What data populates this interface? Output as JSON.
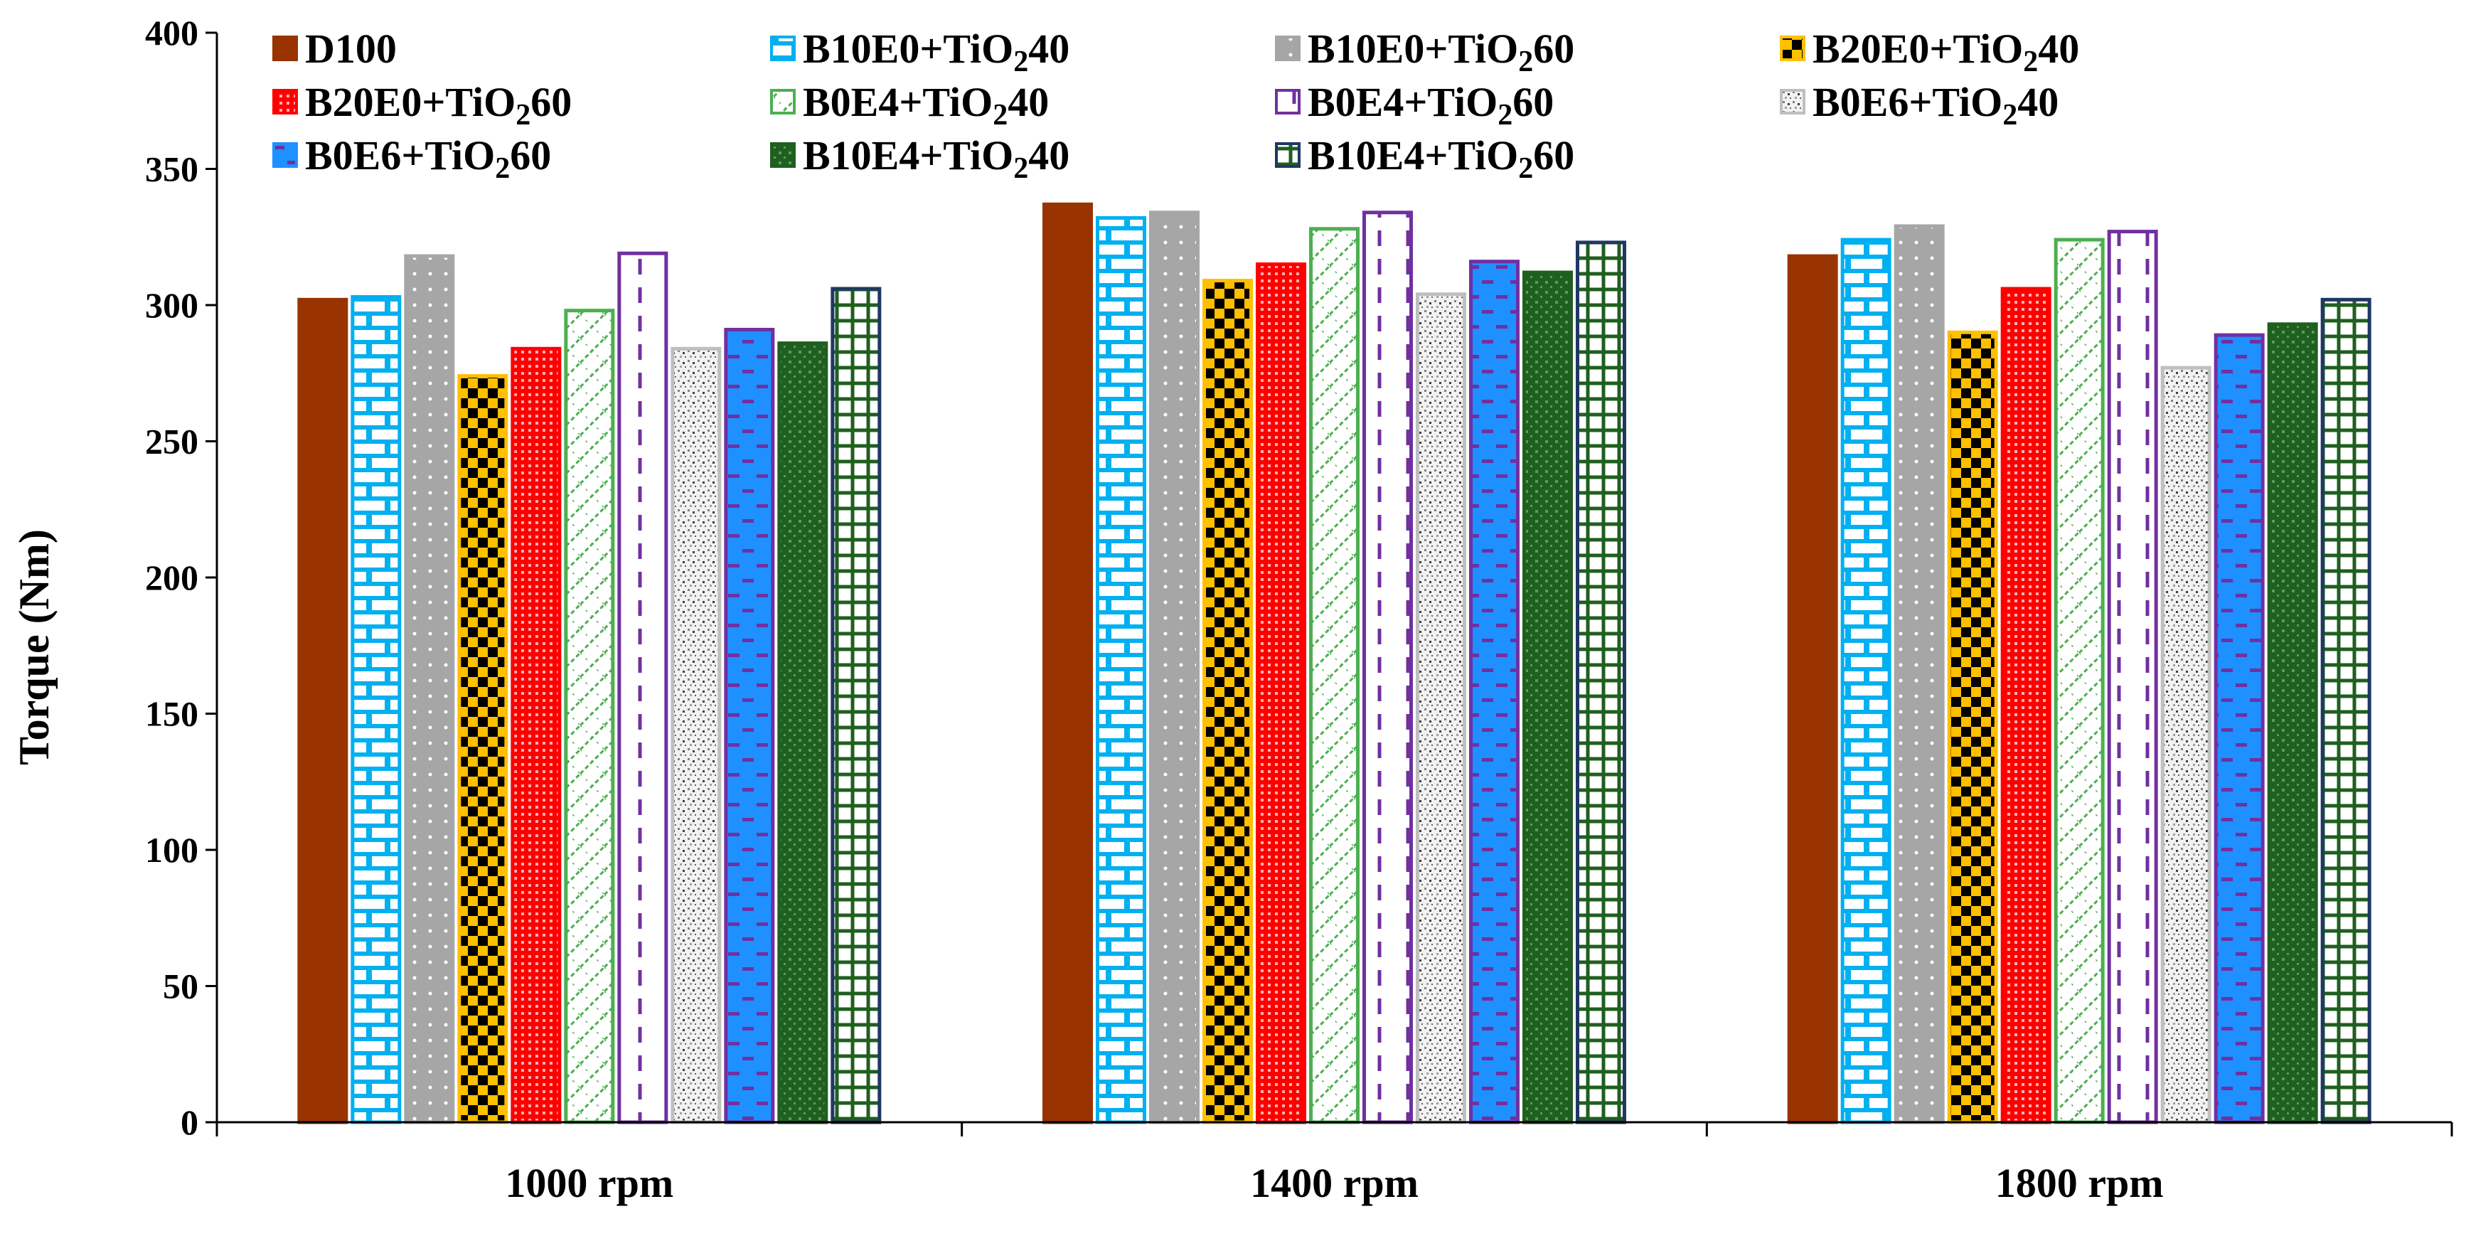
{
  "chart_data": {
    "type": "bar",
    "ylabel": "Torque (Nm)",
    "xlabel": "",
    "ylim": [
      0,
      400
    ],
    "yticks": [
      "0",
      "50",
      "100",
      "150",
      "200",
      "250",
      "300",
      "350",
      "400"
    ],
    "categories": [
      "1000 rpm",
      "1400 rpm",
      "1800 rpm"
    ],
    "series": [
      {
        "name": "D100",
        "label_parts": [
          "D100"
        ],
        "values": [
          302,
          337,
          318
        ],
        "color": "#993300",
        "pattern": "solid"
      },
      {
        "name": "B10E0+TiO240",
        "label_parts": [
          "B10E0+TiO",
          "2",
          "40"
        ],
        "values": [
          303,
          332,
          324
        ],
        "color": "#00B0F0",
        "pattern": "brick"
      },
      {
        "name": "B10E0+TiO260",
        "label_parts": [
          "B10E0+TiO",
          "2",
          "60"
        ],
        "values": [
          318,
          334,
          329
        ],
        "color": "#A6A6A6",
        "pattern": "dots"
      },
      {
        "name": "B20E0+TiO240",
        "label_parts": [
          "B20E0+TiO",
          "2",
          "40"
        ],
        "values": [
          274,
          309,
          290
        ],
        "color": "#FFC000",
        "pattern": "checker"
      },
      {
        "name": "B20E0+TiO260",
        "label_parts": [
          "B20E0+TiO",
          "2",
          "60"
        ],
        "values": [
          284,
          315,
          306
        ],
        "color": "#FF0000",
        "pattern": "grid"
      },
      {
        "name": "B0E4+TiO240",
        "label_parts": [
          "B0E4+TiO",
          "2",
          "40"
        ],
        "values": [
          298,
          328,
          324
        ],
        "color": "#4CAF50",
        "pattern": "diag"
      },
      {
        "name": "B0E4+TiO260",
        "label_parts": [
          "B0E4+TiO",
          "2",
          "60"
        ],
        "values": [
          319,
          334,
          327
        ],
        "color": "#7030A0",
        "pattern": "dash"
      },
      {
        "name": "B0E6+TiO240",
        "label_parts": [
          "B0E6+TiO",
          "2",
          "40"
        ],
        "values": [
          284,
          304,
          277
        ],
        "color": "#BFBFBF",
        "pattern": "speckle"
      },
      {
        "name": "B0E6+TiO260",
        "label_parts": [
          "B0E6+TiO",
          "2",
          "60"
        ],
        "values": [
          291,
          316,
          289
        ],
        "color": "#1E90FF",
        "pattern": "bluedash"
      },
      {
        "name": "B10E4+TiO240",
        "label_parts": [
          "B10E4+TiO",
          "2",
          "40"
        ],
        "values": [
          286,
          312,
          293
        ],
        "color": "#1F5F1F",
        "pattern": "greendots"
      },
      {
        "name": "B10E4+TiO260",
        "label_parts": [
          "B10E4+TiO",
          "2",
          "60"
        ],
        "values": [
          306,
          323,
          302
        ],
        "color": "#1F3864",
        "pattern": "greengrid"
      }
    ]
  }
}
